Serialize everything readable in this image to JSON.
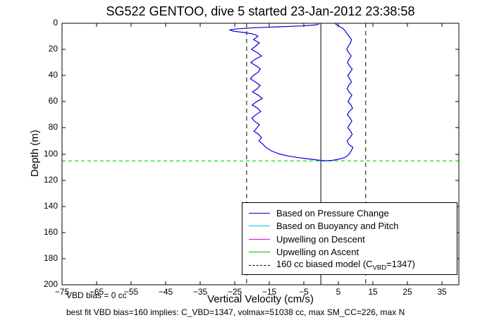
{
  "chart_data": {
    "type": "line",
    "title": "SG522 GENTOO, dive 5 started 23-Jan-2012 23:38:58",
    "xlabel": "Vertical Velocity (cm/s)",
    "ylabel": "Depth (m)",
    "xlim": [
      -75,
      40
    ],
    "ylim": [
      0,
      200
    ],
    "y_axis_inverted_depth": true,
    "grid": false,
    "x_ticks": [
      -75,
      -65,
      -55,
      -45,
      -35,
      -25,
      -15,
      -5,
      5,
      15,
      25,
      35
    ],
    "x_tick_labels": [
      "−75",
      "−65",
      "−55",
      "−45",
      "−35",
      "−25",
      "−15",
      "−5",
      "5",
      "15",
      "25",
      "35"
    ],
    "y_ticks": [
      0,
      20,
      40,
      60,
      80,
      100,
      120,
      140,
      160,
      180,
      200
    ],
    "y_tick_labels": [
      "0",
      "20",
      "40",
      "60",
      "80",
      "100",
      "120",
      "140",
      "160",
      "180",
      "200"
    ],
    "points_format": "[vertical_velocity_cm_per_s, depth_m]",
    "series": [
      {
        "name": "apogee-depth-marker",
        "color": "#00d400",
        "style": "dashed",
        "dash": "5,4",
        "width": 1.2,
        "points": [
          [
            -75,
            105.3
          ],
          [
            40,
            105.3
          ]
        ]
      },
      {
        "name": "model-descent-w",
        "color": "#000000",
        "style": "dashed",
        "dash": "6,5",
        "width": 1,
        "points": [
          [
            -21.5,
            0
          ],
          [
            -21.5,
            200
          ]
        ]
      },
      {
        "name": "model-ascent-w",
        "color": "#000000",
        "style": "dashed",
        "dash": "6,5",
        "width": 1,
        "points": [
          [
            13,
            0
          ],
          [
            13,
            200
          ]
        ]
      },
      {
        "name": "zero-reference",
        "color": "#000000",
        "style": "solid",
        "width": 1,
        "points": [
          [
            0,
            0
          ],
          [
            0,
            200
          ]
        ]
      },
      {
        "name": "w-from-pressure",
        "color": "#0000dd",
        "style": "solid",
        "width": 1.2,
        "points": [
          [
            -0.5,
            0.6
          ],
          [
            -1.5,
            1.3
          ],
          [
            -5,
            2.0
          ],
          [
            -12,
            2.7
          ],
          [
            -19,
            3.4
          ],
          [
            -24,
            4.2
          ],
          [
            -26.5,
            5.0
          ],
          [
            -25.5,
            6.0
          ],
          [
            -22.5,
            7.0
          ],
          [
            -20.0,
            8.0
          ],
          [
            -18.8,
            9.0
          ],
          [
            -18.2,
            10
          ],
          [
            -19.5,
            12.5
          ],
          [
            -17.8,
            15
          ],
          [
            -18.9,
            17.5
          ],
          [
            -20.1,
            20
          ],
          [
            -18.4,
            22.5
          ],
          [
            -17.2,
            25
          ],
          [
            -19.0,
            27.5
          ],
          [
            -20.3,
            30
          ],
          [
            -18.8,
            32.5
          ],
          [
            -17.5,
            35
          ],
          [
            -18.2,
            37.5
          ],
          [
            -19.6,
            40
          ],
          [
            -20.4,
            42.5
          ],
          [
            -18.9,
            45
          ],
          [
            -17.6,
            47.5
          ],
          [
            -18.4,
            50
          ],
          [
            -19.8,
            52.5
          ],
          [
            -18.1,
            55
          ],
          [
            -17.0,
            57.5
          ],
          [
            -18.6,
            60
          ],
          [
            -19.9,
            62.5
          ],
          [
            -18.3,
            65
          ],
          [
            -17.4,
            67.5
          ],
          [
            -18.8,
            70
          ],
          [
            -20.0,
            72.5
          ],
          [
            -19.2,
            75
          ],
          [
            -17.8,
            77.5
          ],
          [
            -18.5,
            80
          ],
          [
            -19.4,
            82.5
          ],
          [
            -18.0,
            85
          ],
          [
            -17.2,
            87.5
          ],
          [
            -17.9,
            90
          ],
          [
            -16.8,
            92.5
          ],
          [
            -15.9,
            95
          ],
          [
            -14.4,
            97.5
          ],
          [
            -12.0,
            100
          ],
          [
            -9.5,
            101.5
          ],
          [
            -6.5,
            102.8
          ],
          [
            -3.5,
            103.8
          ],
          [
            -1.0,
            104.6
          ],
          [
            1.2,
            105.2
          ],
          [
            3.2,
            104.9
          ],
          [
            5.2,
            104.0
          ],
          [
            6.8,
            102.8
          ],
          [
            7.8,
            101.2
          ],
          [
            8.3,
            99.5
          ],
          [
            8.8,
            97.5
          ],
          [
            9.3,
            95
          ],
          [
            8.1,
            92.5
          ],
          [
            7.6,
            90
          ],
          [
            8.4,
            87.5
          ],
          [
            9.1,
            85
          ],
          [
            8.6,
            82.5
          ],
          [
            7.8,
            80
          ],
          [
            8.3,
            77.5
          ],
          [
            9.0,
            75
          ],
          [
            8.5,
            72.5
          ],
          [
            7.7,
            70
          ],
          [
            8.2,
            67.5
          ],
          [
            9.2,
            65
          ],
          [
            8.7,
            62.5
          ],
          [
            7.9,
            60
          ],
          [
            8.4,
            57.5
          ],
          [
            9.0,
            55
          ],
          [
            8.2,
            52.5
          ],
          [
            7.6,
            50
          ],
          [
            8.1,
            47.5
          ],
          [
            8.9,
            45
          ],
          [
            8.4,
            42.5
          ],
          [
            7.8,
            40
          ],
          [
            8.5,
            37.5
          ],
          [
            9.1,
            35
          ],
          [
            8.3,
            32.5
          ],
          [
            7.7,
            30
          ],
          [
            8.2,
            27.5
          ],
          [
            8.8,
            25
          ],
          [
            8.1,
            22.5
          ],
          [
            7.5,
            20
          ],
          [
            8.0,
            17.5
          ],
          [
            8.6,
            15
          ],
          [
            8.9,
            12.5
          ],
          [
            8.2,
            10
          ],
          [
            7.6,
            8
          ],
          [
            7.1,
            6
          ],
          [
            6.4,
            4
          ],
          [
            5.4,
            2.5
          ],
          [
            4.6,
            1.2
          ],
          [
            4.2,
            0.4
          ]
        ]
      }
    ],
    "legend": {
      "position": "lower right",
      "entries": [
        {
          "label": "Based on Pressure Change",
          "color": "#0000dd",
          "style": "solid",
          "parts": [
            {
              "t": "Based on Pressure Change"
            }
          ]
        },
        {
          "label": "Based on Buoyancy and Pitch",
          "color": "#00cccc",
          "style": "solid",
          "parts": [
            {
              "t": "Based on Buoyancy and Pitch"
            }
          ]
        },
        {
          "label": "Upwelling on Descent",
          "color": "#dd00dd",
          "style": "solid",
          "parts": [
            {
              "t": "Upwelling on Descent"
            }
          ]
        },
        {
          "label": "Upwelling on Ascent",
          "color": "#00bb00",
          "style": "solid",
          "parts": [
            {
              "t": "Upwelling on Ascent"
            }
          ]
        },
        {
          "label": "160 cc biased model (C_VBD=1347)",
          "color": "#000000",
          "style": "dashed",
          "parts": [
            {
              "t": "160 cc biased model (C"
            },
            {
              "t": "VBD",
              "sub": true
            },
            {
              "t": "=1347)"
            }
          ]
        }
      ]
    }
  },
  "notes": {
    "vbd_bias": "VBD bias = 0 cc",
    "best_fit": "best fit VBD bias=160 implies: C_VBD=1347, volmax=51038 cc, max SM_CC=226, max N"
  }
}
